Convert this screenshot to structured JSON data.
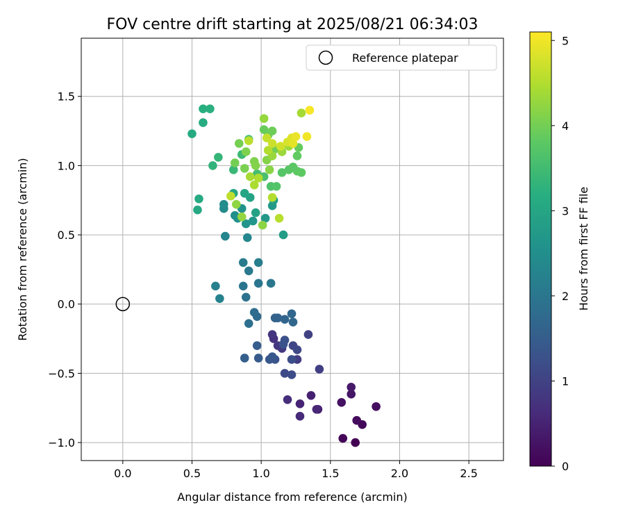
{
  "chart_data": {
    "type": "scatter",
    "title": "FOV centre drift starting at 2025/08/21 06:34:03",
    "xlabel": "Angular distance from reference (arcmin)",
    "ylabel": "Rotation from reference (arcmin)",
    "xlim": [
      -0.3,
      2.75
    ],
    "ylim": [
      -1.13,
      1.92
    ],
    "xticks": [
      0.0,
      0.5,
      1.0,
      1.5,
      2.0,
      2.5
    ],
    "xtick_labels": [
      "0.0",
      "0.5",
      "1.0",
      "1.5",
      "2.0",
      "2.5"
    ],
    "yticks": [
      -1.0,
      -0.5,
      0.0,
      0.5,
      1.0,
      1.5
    ],
    "ytick_labels": [
      "−1.0",
      "−0.5",
      "0.0",
      "0.5",
      "1.0",
      "1.5"
    ],
    "grid": true,
    "legend": {
      "placement": "top-right",
      "entries": [
        "Reference platepar"
      ]
    },
    "reference_point": {
      "x": 0.0,
      "y": 0.0,
      "label": "Reference platepar"
    },
    "colorbar": {
      "label": "Hours from first FF file",
      "range": [
        0,
        5.1
      ],
      "ticks": [
        0,
        1,
        2,
        3,
        4,
        5
      ],
      "tick_labels": [
        "0",
        "1",
        "2",
        "3",
        "4",
        "5"
      ],
      "colormap": "viridis"
    },
    "points": [
      [
        1.68,
        -1.0,
        0.0
      ],
      [
        1.59,
        -0.97,
        0.05
      ],
      [
        1.73,
        -0.87,
        0.1
      ],
      [
        1.69,
        -0.84,
        0.15
      ],
      [
        1.83,
        -0.74,
        0.2
      ],
      [
        1.58,
        -0.71,
        0.25
      ],
      [
        1.65,
        -0.65,
        0.3
      ],
      [
        1.65,
        -0.6,
        0.35
      ],
      [
        1.41,
        -0.76,
        0.4
      ],
      [
        1.36,
        -0.66,
        0.45
      ],
      [
        1.28,
        -0.72,
        0.5
      ],
      [
        1.4,
        -0.76,
        0.55
      ],
      [
        1.28,
        -0.81,
        0.6
      ],
      [
        1.19,
        -0.69,
        0.65
      ],
      [
        1.09,
        -0.25,
        0.7
      ],
      [
        1.08,
        -0.22,
        0.75
      ],
      [
        1.12,
        -0.3,
        0.8
      ],
      [
        1.15,
        -0.32,
        0.85
      ],
      [
        1.26,
        -0.4,
        0.9
      ],
      [
        1.42,
        -0.47,
        0.95
      ],
      [
        1.34,
        -0.22,
        1.0
      ],
      [
        1.23,
        -0.3,
        1.05
      ],
      [
        1.26,
        -0.33,
        1.1
      ],
      [
        1.17,
        -0.5,
        1.12
      ],
      [
        1.22,
        -0.51,
        1.15
      ],
      [
        1.22,
        -0.4,
        1.2
      ],
      [
        1.17,
        -0.26,
        1.25
      ],
      [
        1.16,
        -0.29,
        1.28
      ],
      [
        1.1,
        -0.4,
        1.3
      ],
      [
        1.06,
        -0.4,
        1.35
      ],
      [
        1.08,
        -0.38,
        1.4
      ],
      [
        0.98,
        -0.39,
        1.45
      ],
      [
        0.97,
        -0.3,
        1.5
      ],
      [
        0.88,
        -0.39,
        1.55
      ],
      [
        1.1,
        -0.1,
        1.6
      ],
      [
        1.12,
        -0.1,
        1.62
      ],
      [
        1.17,
        -0.11,
        1.65
      ],
      [
        1.22,
        -0.07,
        1.68
      ],
      [
        1.23,
        -0.13,
        1.7
      ],
      [
        0.97,
        -0.09,
        1.75
      ],
      [
        0.95,
        -0.06,
        1.8
      ],
      [
        0.91,
        -0.14,
        1.85
      ],
      [
        0.89,
        0.05,
        1.9
      ],
      [
        0.87,
        0.13,
        1.95
      ],
      [
        0.98,
        0.15,
        2.0
      ],
      [
        1.07,
        0.15,
        2.02
      ],
      [
        0.91,
        0.24,
        2.05
      ],
      [
        0.87,
        0.3,
        2.1
      ],
      [
        0.98,
        0.3,
        2.15
      ],
      [
        0.67,
        0.13,
        2.2
      ],
      [
        0.7,
        0.04,
        2.25
      ],
      [
        0.74,
        0.49,
        2.3
      ],
      [
        0.9,
        0.48,
        2.35
      ],
      [
        0.73,
        0.69,
        2.4
      ],
      [
        0.73,
        0.72,
        2.45
      ],
      [
        0.81,
        0.64,
        2.5
      ],
      [
        0.83,
        0.62,
        2.55
      ],
      [
        0.86,
        0.69,
        2.6
      ],
      [
        0.89,
        0.58,
        2.62
      ],
      [
        0.94,
        0.6,
        2.65
      ],
      [
        1.03,
        0.62,
        2.7
      ],
      [
        1.08,
        0.71,
        2.75
      ],
      [
        1.16,
        0.5,
        2.8
      ],
      [
        1.09,
        0.75,
        2.85
      ],
      [
        0.96,
        0.66,
        2.9
      ],
      [
        0.92,
        0.77,
        2.95
      ],
      [
        0.88,
        0.8,
        3.0
      ],
      [
        0.8,
        0.8,
        3.02
      ],
      [
        0.54,
        0.68,
        3.05
      ],
      [
        0.55,
        0.76,
        3.08
      ],
      [
        0.5,
        1.23,
        3.1
      ],
      [
        0.58,
        1.31,
        3.15
      ],
      [
        0.58,
        1.41,
        3.2
      ],
      [
        0.63,
        1.41,
        3.22
      ],
      [
        0.65,
        1.0,
        3.3
      ],
      [
        0.69,
        1.06,
        3.35
      ],
      [
        0.8,
        0.97,
        3.4
      ],
      [
        0.86,
        1.08,
        3.45
      ],
      [
        0.91,
        1.19,
        3.5
      ],
      [
        0.97,
        0.94,
        3.55
      ],
      [
        1.02,
        0.92,
        3.6
      ],
      [
        1.07,
        0.85,
        3.65
      ],
      [
        1.11,
        0.85,
        3.7
      ],
      [
        1.15,
        0.95,
        3.72
      ],
      [
        1.2,
        0.97,
        3.75
      ],
      [
        1.23,
        0.99,
        3.78
      ],
      [
        1.26,
        0.96,
        3.8
      ],
      [
        1.29,
        0.95,
        3.82
      ],
      [
        1.26,
        1.07,
        3.85
      ],
      [
        1.27,
        1.13,
        3.88
      ],
      [
        1.02,
        1.26,
        3.9
      ],
      [
        1.05,
        1.22,
        3.92
      ],
      [
        1.08,
        1.25,
        3.95
      ],
      [
        1.1,
        1.12,
        3.98
      ],
      [
        0.81,
        1.02,
        4.0
      ],
      [
        0.84,
        1.16,
        4.02
      ],
      [
        0.88,
        0.98,
        4.05
      ],
      [
        0.89,
        1.1,
        4.08
      ],
      [
        0.95,
        1.03,
        4.1
      ],
      [
        0.96,
        1.0,
        4.12
      ],
      [
        1.04,
        1.04,
        4.15
      ],
      [
        1.06,
        0.97,
        4.18
      ],
      [
        1.01,
        0.57,
        4.2
      ],
      [
        0.82,
        0.72,
        4.22
      ],
      [
        0.86,
        0.63,
        4.25
      ],
      [
        1.02,
        1.34,
        4.28
      ],
      [
        1.08,
        1.07,
        4.3
      ],
      [
        1.15,
        1.1,
        4.32
      ],
      [
        1.2,
        1.14,
        4.35
      ],
      [
        1.29,
        1.38,
        4.4
      ],
      [
        0.92,
        0.92,
        4.42
      ],
      [
        0.95,
        0.86,
        4.45
      ],
      [
        0.98,
        0.91,
        4.48
      ],
      [
        1.05,
        1.11,
        4.5
      ],
      [
        1.08,
        0.77,
        4.52
      ],
      [
        1.13,
        0.62,
        4.55
      ],
      [
        0.91,
        1.18,
        4.58
      ],
      [
        0.78,
        0.78,
        4.6
      ],
      [
        1.04,
        1.2,
        4.65
      ],
      [
        1.08,
        1.16,
        4.7
      ],
      [
        1.14,
        1.14,
        4.75
      ],
      [
        1.19,
        1.17,
        4.8
      ],
      [
        1.22,
        1.2,
        4.85
      ],
      [
        1.23,
        1.16,
        4.9
      ],
      [
        1.25,
        1.21,
        4.95
      ],
      [
        1.33,
        1.21,
        5.0
      ],
      [
        1.35,
        1.4,
        5.05
      ]
    ]
  }
}
